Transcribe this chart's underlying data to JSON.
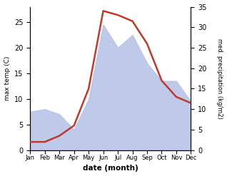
{
  "months": [
    "Jan",
    "Feb",
    "Mar",
    "Apr",
    "May",
    "Jun",
    "Jul",
    "Aug",
    "Sep",
    "Oct",
    "Nov",
    "Dec"
  ],
  "temperature": [
    2.0,
    2.0,
    3.5,
    6.0,
    15.0,
    34.0,
    33.0,
    31.5,
    26.0,
    17.0,
    13.0,
    11.5
  ],
  "precipitation": [
    7.5,
    8.0,
    7.0,
    4.0,
    10.0,
    24.5,
    20.0,
    22.5,
    17.0,
    13.5,
    13.5,
    9.5
  ],
  "temp_color": "#c0392b",
  "precip_color": "#b8c4e8",
  "temp_ylim": [
    0,
    35
  ],
  "precip_ylim": [
    0,
    28
  ],
  "temp_yticks": [
    0,
    5,
    10,
    15,
    20,
    25,
    30,
    35
  ],
  "precip_yticks": [
    0,
    5,
    10,
    15,
    20,
    25
  ],
  "xlabel": "date (month)",
  "ylabel_left": "max temp (C)",
  "ylabel_right": "med. precipitation (kg/m2)",
  "fig_width": 3.18,
  "fig_height": 2.47,
  "dpi": 100
}
